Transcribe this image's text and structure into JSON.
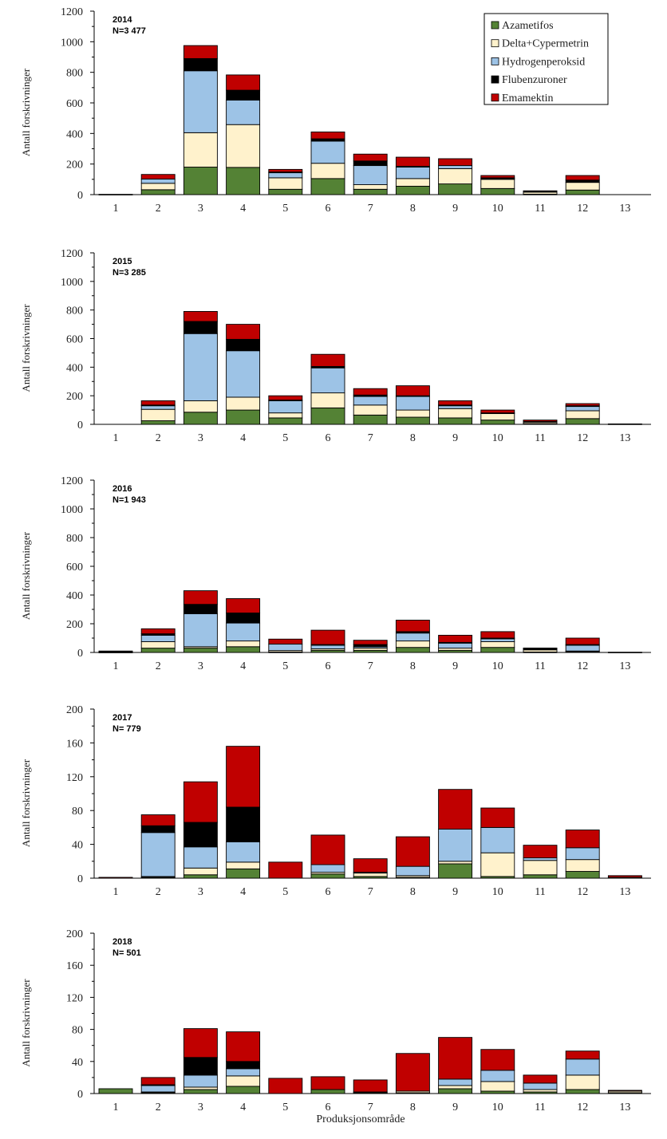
{
  "x_title": "Produksjonsområde",
  "colors": {
    "Azametifos": "#548235",
    "Delta+Cypermetrin": "#FFF2CC",
    "Hydrogenperoksid": "#9DC3E6",
    "Flubenzuroner": "#000000",
    "Emamektin": "#C00000"
  },
  "chart_data": [
    {
      "type": "bar",
      "stacked": true,
      "annotation": [
        "2014",
        "N=3 477"
      ],
      "ylabel": "Antall forskrivninger",
      "ylim": [
        0,
        1200
      ],
      "yticks": [
        0,
        200,
        400,
        600,
        800,
        1000,
        1200
      ],
      "categories": [
        "1",
        "2",
        "3",
        "4",
        "5",
        "6",
        "7",
        "8",
        "9",
        "10",
        "11",
        "12",
        "13"
      ],
      "legend": {
        "position": "top-right",
        "entries": [
          "Azametifos",
          "Delta+Cypermetrin",
          "Hydrogenperoksid",
          "Flubenzuroner",
          "Emamektin"
        ]
      },
      "series": [
        {
          "name": "Azametifos",
          "values": [
            0,
            32,
            180,
            178,
            35,
            105,
            35,
            55,
            70,
            40,
            3,
            30,
            0
          ]
        },
        {
          "name": "Delta+Cypermetrin",
          "values": [
            0,
            42,
            225,
            280,
            75,
            100,
            30,
            50,
            100,
            60,
            15,
            50,
            0
          ]
        },
        {
          "name": "Hydrogenperoksid",
          "values": [
            0,
            28,
            405,
            160,
            33,
            145,
            125,
            75,
            20,
            5,
            0,
            0,
            0
          ]
        },
        {
          "name": "Flubenzuroner",
          "values": [
            0,
            0,
            80,
            65,
            5,
            15,
            30,
            5,
            0,
            5,
            2,
            15,
            0
          ]
        },
        {
          "name": "Emamektin",
          "values": [
            2,
            30,
            85,
            100,
            17,
            45,
            45,
            60,
            45,
            15,
            5,
            30,
            0
          ]
        }
      ]
    },
    {
      "type": "bar",
      "stacked": true,
      "annotation": [
        "2015",
        "N=3 285"
      ],
      "ylabel": "Antall forskrivninger",
      "ylim": [
        0,
        1200
      ],
      "yticks": [
        0,
        200,
        400,
        600,
        800,
        1000,
        1200
      ],
      "categories": [
        "1",
        "2",
        "3",
        "4",
        "5",
        "6",
        "7",
        "8",
        "9",
        "10",
        "11",
        "12",
        "13"
      ],
      "series": [
        {
          "name": "Azametifos",
          "values": [
            0,
            25,
            85,
            100,
            45,
            115,
            65,
            50,
            45,
            30,
            5,
            40,
            0
          ]
        },
        {
          "name": "Delta+Cypermetrin",
          "values": [
            0,
            80,
            80,
            90,
            35,
            105,
            70,
            50,
            65,
            45,
            10,
            55,
            0
          ]
        },
        {
          "name": "Hydrogenperoksid",
          "values": [
            0,
            25,
            470,
            325,
            85,
            175,
            60,
            95,
            20,
            5,
            5,
            30,
            0
          ]
        },
        {
          "name": "Flubenzuroner",
          "values": [
            0,
            5,
            85,
            80,
            5,
            10,
            10,
            5,
            5,
            0,
            0,
            5,
            0
          ]
        },
        {
          "name": "Emamektin",
          "values": [
            0,
            30,
            70,
            105,
            30,
            85,
            45,
            70,
            30,
            20,
            10,
            15,
            3
          ]
        }
      ]
    },
    {
      "type": "bar",
      "stacked": true,
      "annotation": [
        "2016",
        "N=1 943"
      ],
      "ylabel": "Antall forskrivninger",
      "ylim": [
        0,
        1200
      ],
      "yticks": [
        0,
        200,
        400,
        600,
        800,
        1000,
        1200
      ],
      "categories": [
        "1",
        "2",
        "3",
        "4",
        "5",
        "6",
        "7",
        "8",
        "9",
        "10",
        "11",
        "12",
        "13"
      ],
      "series": [
        {
          "name": "Azametifos",
          "values": [
            2,
            30,
            30,
            40,
            3,
            15,
            15,
            35,
            15,
            35,
            3,
            5,
            0
          ]
        },
        {
          "name": "Delta+Cypermetrin",
          "values": [
            3,
            45,
            10,
            40,
            10,
            10,
            15,
            45,
            15,
            40,
            15,
            5,
            0
          ]
        },
        {
          "name": "Hydrogenperoksid",
          "values": [
            0,
            45,
            230,
            125,
            45,
            25,
            10,
            55,
            35,
            20,
            0,
            40,
            0
          ]
        },
        {
          "name": "Flubenzuroner",
          "values": [
            0,
            10,
            65,
            70,
            0,
            5,
            15,
            10,
            5,
            5,
            10,
            5,
            0
          ]
        },
        {
          "name": "Emamektin",
          "values": [
            5,
            35,
            95,
            100,
            35,
            100,
            30,
            80,
            50,
            45,
            3,
            45,
            2
          ]
        }
      ]
    },
    {
      "type": "bar",
      "stacked": true,
      "annotation": [
        "2017",
        "N= 779"
      ],
      "ylabel": "Antall forskrivninger",
      "ylim": [
        0,
        200
      ],
      "yticks": [
        0,
        40,
        80,
        120,
        160,
        200
      ],
      "categories": [
        "1",
        "2",
        "3",
        "4",
        "5",
        "6",
        "7",
        "8",
        "9",
        "10",
        "11",
        "12",
        "13"
      ],
      "series": [
        {
          "name": "Azametifos",
          "values": [
            0,
            1,
            4,
            11,
            0,
            5,
            2,
            1,
            17,
            2,
            4,
            8,
            0
          ]
        },
        {
          "name": "Delta+Cypermetrin",
          "values": [
            0,
            1,
            8,
            8,
            0,
            2,
            4,
            2,
            3,
            28,
            17,
            14,
            1
          ]
        },
        {
          "name": "Hydrogenperoksid",
          "values": [
            0,
            52,
            25,
            24,
            0,
            9,
            1,
            11,
            38,
            30,
            3,
            14,
            0
          ]
        },
        {
          "name": "Flubenzuroner",
          "values": [
            0,
            8,
            29,
            41,
            0,
            0,
            0,
            0,
            0,
            0,
            0,
            0,
            0
          ]
        },
        {
          "name": "Emamektin",
          "values": [
            1,
            13,
            48,
            72,
            19,
            35,
            16,
            35,
            47,
            23,
            15,
            21,
            2
          ]
        }
      ]
    },
    {
      "type": "bar",
      "stacked": true,
      "annotation": [
        "2018",
        "N= 501"
      ],
      "ylabel": "Antall forskrivninger",
      "ylim": [
        0,
        200
      ],
      "yticks": [
        0,
        40,
        80,
        120,
        160,
        200
      ],
      "categories": [
        "1",
        "2",
        "3",
        "4",
        "5",
        "6",
        "7",
        "8",
        "9",
        "10",
        "11",
        "12",
        "13"
      ],
      "series": [
        {
          "name": "Azametifos",
          "values": [
            6,
            1,
            5,
            9,
            0,
            5,
            1,
            1,
            6,
            3,
            2,
            5,
            1
          ]
        },
        {
          "name": "Delta+Cypermetrin",
          "values": [
            0,
            1,
            3,
            13,
            0,
            0,
            1,
            2,
            4,
            12,
            3,
            18,
            2
          ]
        },
        {
          "name": "Hydrogenperoksid",
          "values": [
            0,
            8,
            15,
            9,
            0,
            0,
            0,
            0,
            8,
            14,
            8,
            20,
            0
          ]
        },
        {
          "name": "Flubenzuroner",
          "values": [
            0,
            1,
            22,
            9,
            0,
            0,
            0,
            0,
            0,
            0,
            0,
            0,
            0
          ]
        },
        {
          "name": "Emamektin",
          "values": [
            0,
            9,
            36,
            37,
            19,
            16,
            15,
            47,
            52,
            26,
            10,
            10,
            1
          ]
        }
      ]
    }
  ]
}
